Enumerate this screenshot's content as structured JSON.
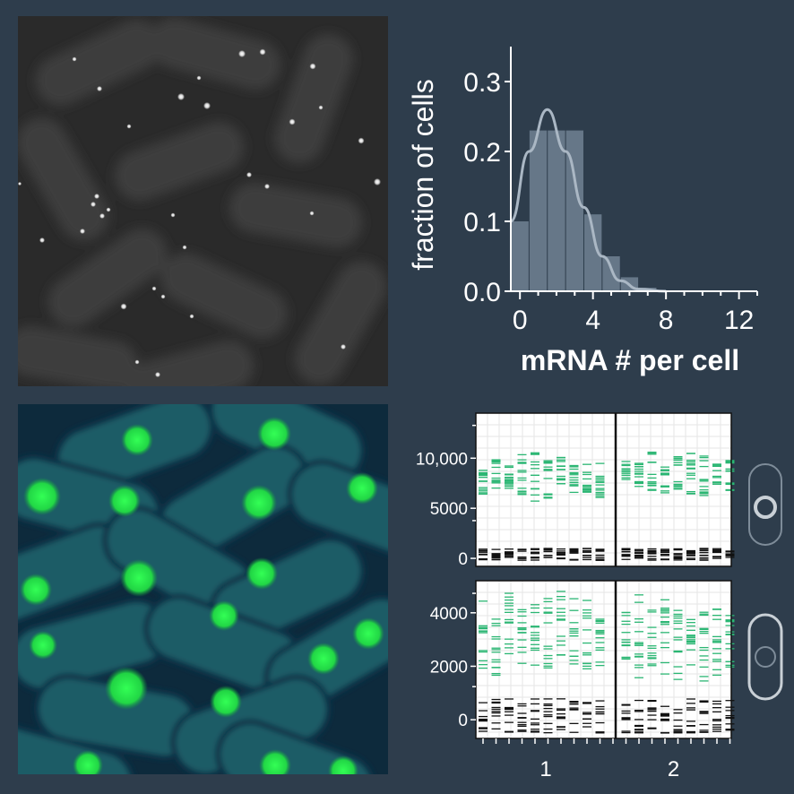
{
  "colors": {
    "background": "#2e3d4c",
    "hist_bar": "#667788",
    "hist_curve": "#aab7c4",
    "axis_text": "#ffffff",
    "strip_green": "#2bb673",
    "strip_black": "#111111"
  },
  "images": {
    "top_left": "smFISH grayscale micrograph with bright mRNA spots",
    "bottom_left": "fluorescence micrograph, green nuclei in blue-green rod-shaped cells"
  },
  "chart_data": [
    {
      "type": "bar",
      "x": [
        -0.5,
        0.5,
        1.5,
        2.5,
        3.5,
        4.5,
        5.5,
        6.5
      ],
      "values": [
        0.1,
        0.23,
        0.23,
        0.23,
        0.11,
        0.05,
        0.02,
        0.005
      ],
      "bin_width": 1,
      "curve": {
        "x": [
          -0.5,
          0.5,
          1.5,
          2.5,
          3.5,
          4.5,
          5.5,
          6.5,
          8
        ],
        "y": [
          0.1,
          0.2,
          0.26,
          0.2,
          0.12,
          0.05,
          0.015,
          0.003,
          0.0
        ]
      },
      "xlabel": "mRNA # per cell",
      "ylabel": "fraction of cells",
      "xticks": [
        "0",
        "4",
        "8",
        "12"
      ],
      "yticks": [
        "0.0",
        "0.1",
        "0.2",
        "0.3"
      ],
      "xlim": [
        -0.5,
        13
      ],
      "ylim": [
        0,
        0.35
      ]
    },
    {
      "type": "strip",
      "categories": [
        "1",
        "2"
      ],
      "panels": [
        {
          "yticks": [
            "0",
            "5000",
            "10,000"
          ],
          "ylim": [
            -800,
            14500
          ],
          "green_range": [
            5600,
            11000
          ],
          "black_range": [
            -200,
            1000
          ]
        },
        {
          "yticks": [
            "0",
            "2000",
            "4000"
          ],
          "ylim": [
            -700,
            5200
          ],
          "green_range": [
            1300,
            4900
          ],
          "black_range": [
            -500,
            800
          ]
        }
      ]
    }
  ]
}
